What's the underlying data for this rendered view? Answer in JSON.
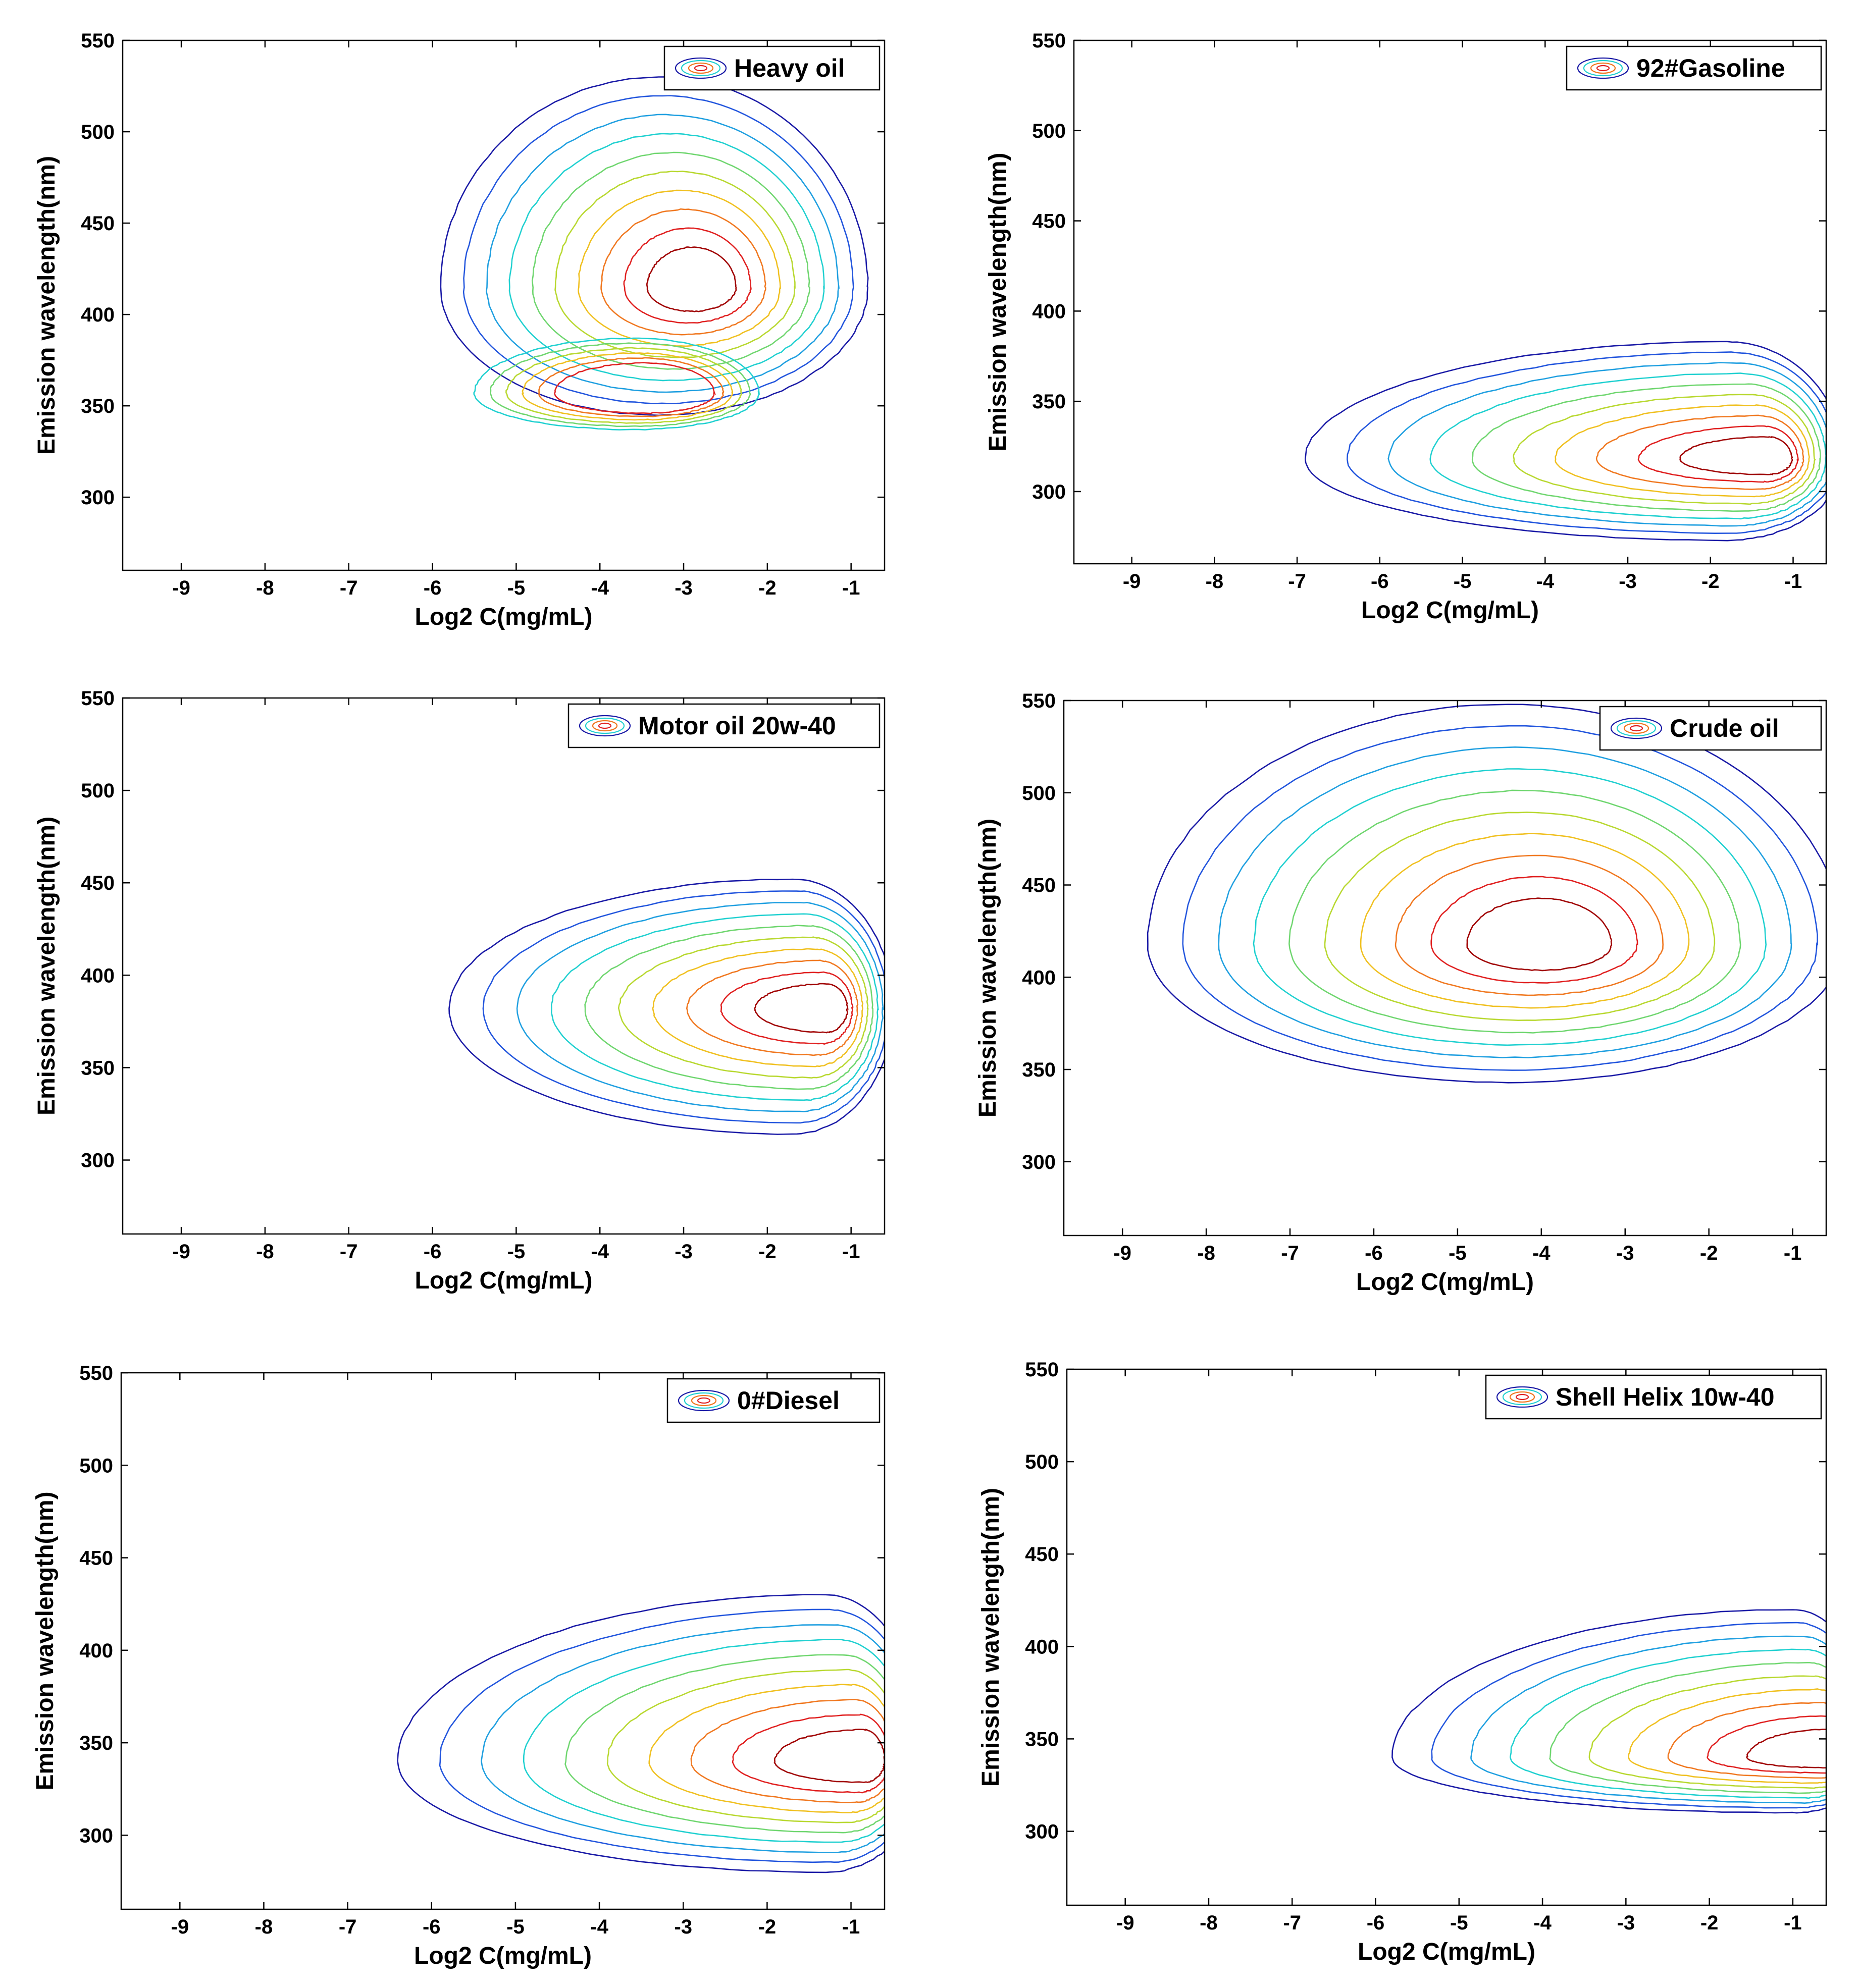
{
  "figure": {
    "shared": {
      "type": "contour",
      "xlabel": "Log2 C(mg/mL)",
      "ylabel": "Emission wavelength(nm)",
      "xlim": [
        -9.7,
        -0.6
      ],
      "ylim": [
        260,
        550
      ],
      "xticks": [
        -9,
        -8,
        -7,
        -6,
        -5,
        -4,
        -3,
        -2,
        -1
      ],
      "yticks": [
        300,
        350,
        400,
        450,
        500,
        550
      ],
      "contour_colors": [
        "#1a1aa6",
        "#2255dd",
        "#1f9fe0",
        "#20d0d0",
        "#6fd66f",
        "#b8d830",
        "#f0c020",
        "#f07820",
        "#e02020",
        "#a00000"
      ],
      "legend_position": "top-right"
    }
  },
  "chart_data": [
    {
      "type": "contour",
      "name": "Heavy oil",
      "legend": "Heavy oil",
      "xlabel": "Log2 C(mg/mL)",
      "ylabel": "Emission wavelength(nm)",
      "xlim": [
        -9.7,
        -0.6
      ],
      "ylim": [
        260,
        550
      ],
      "peaks": [
        {
          "x": -3.3,
          "y": 415,
          "rx": [
            2.6,
            2.5
          ],
          "ry": [
            70,
            115
          ],
          "edge_x_max": -0.6,
          "dx": 0.45
        },
        {
          "x": -3.6,
          "y": 357,
          "rx": [
            1.9,
            1.5
          ],
          "ry": [
            20,
            30
          ],
          "edge_x_max": -1.2,
          "dx": 0.25
        }
      ],
      "levels": 10
    },
    {
      "type": "contour",
      "name": "92#Gasoline",
      "legend": "92#Gasoline",
      "xlabel": "Log2 C(mg/mL)",
      "ylabel": "Emission wavelength(nm)",
      "xlim": [
        -9.7,
        -0.6
      ],
      "ylim": [
        260,
        550
      ],
      "peaks": [
        {
          "x": -1.8,
          "y": 318,
          "rx": [
            5.1,
            1.4
          ],
          "ry": [
            45,
            65
          ],
          "edge_x_max": -0.6,
          "dx": 0.55
        }
      ],
      "levels": 10
    },
    {
      "type": "contour",
      "name": "Motor oil 20w-40",
      "legend": "Motor oil 20w-40",
      "xlabel": "Log2 C(mg/mL)",
      "ylabel": "Emission wavelength(nm)",
      "xlim": [
        -9.7,
        -0.6
      ],
      "ylim": [
        260,
        550
      ],
      "peaks": [
        {
          "x": -1.7,
          "y": 382,
          "rx": [
            4.1,
            1.2
          ],
          "ry": [
            68,
            70
          ],
          "edge_x_max": -0.6,
          "dx": 0.45
        }
      ],
      "levels": 10
    },
    {
      "type": "contour",
      "name": "Crude oil",
      "legend": "Crude oil",
      "xlabel": "Log2 C(mg/mL)",
      "ylabel": "Emission wavelength(nm)",
      "xlim": [
        -9.7,
        -0.6
      ],
      "ylim": [
        260,
        550
      ],
      "peaks": [
        {
          "x": -4.4,
          "y": 418,
          "rx": [
            4.3,
            4.0
          ],
          "ry": [
            75,
            130
          ],
          "edge_x_max": -0.6,
          "dx": 0.45
        }
      ],
      "levels": 10
    },
    {
      "type": "contour",
      "name": "0#Diesel",
      "legend": "0#Diesel",
      "xlabel": "Log2 C(mg/mL)",
      "ylabel": "Emission wavelength(nm)",
      "xlim": [
        -9.7,
        -0.6
      ],
      "ylim": [
        260,
        550
      ],
      "peaks": [
        {
          "x": -1.3,
          "y": 340,
          "rx": [
            5.1,
            1.2
          ],
          "ry": [
            60,
            90
          ],
          "edge_x_max": -0.6,
          "dx": 0.5
        }
      ],
      "levels": 10
    },
    {
      "type": "contour",
      "name": "Shell Helix 10w-40",
      "legend": "Shell Helix 10w-40",
      "xlabel": "Log2 C(mg/mL)",
      "ylabel": "Emission wavelength(nm)",
      "xlim": [
        -9.7,
        -0.6
      ],
      "ylim": [
        260,
        550
      ],
      "peaks": [
        {
          "x": -1.0,
          "y": 340,
          "rx": [
            4.8,
            1.0
          ],
          "ry": [
            30,
            80
          ],
          "edge_x_max": -0.6,
          "dx": 0.5
        }
      ],
      "levels": 10
    }
  ]
}
